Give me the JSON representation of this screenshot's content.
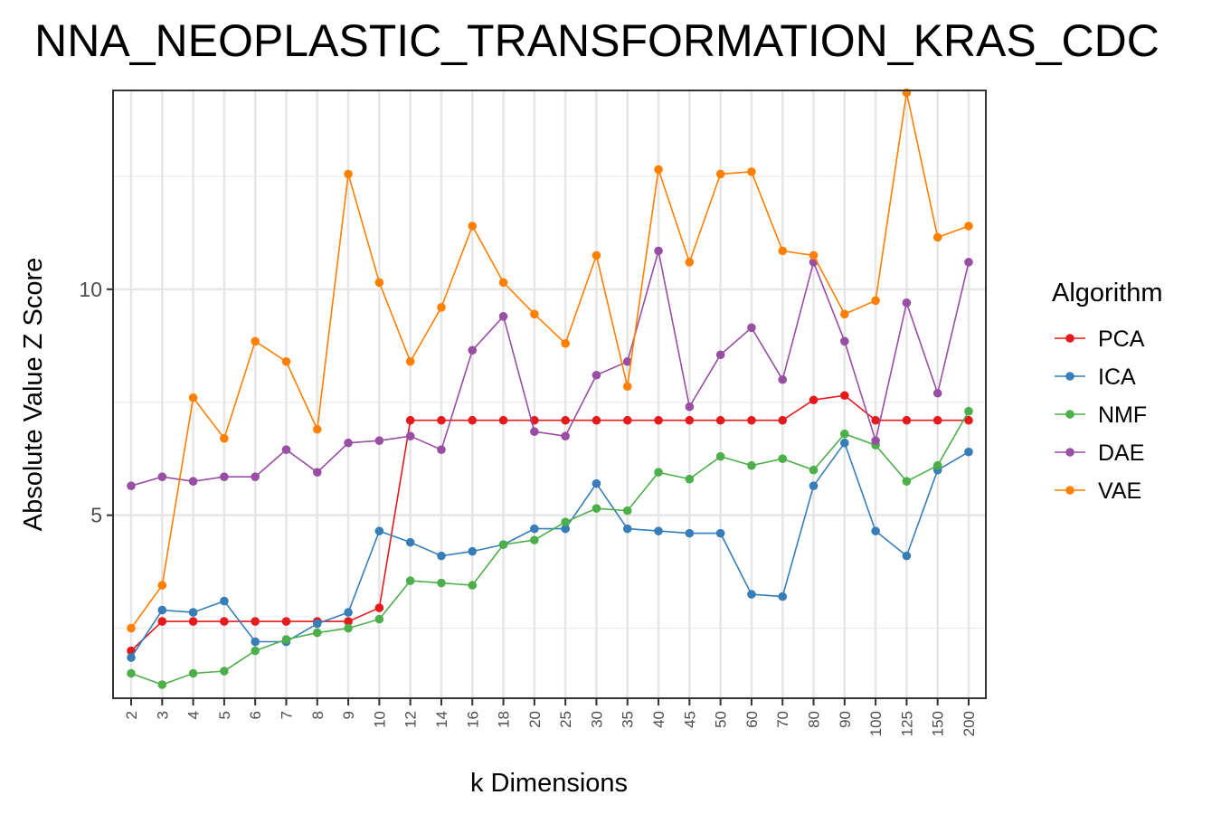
{
  "chart_data": {
    "type": "line",
    "title": "NNA_NEOPLASTIC_TRANSFORMATION_KRAS_CDC",
    "xlabel": "k Dimensions",
    "ylabel": "Absolute Value Z Score",
    "categories": [
      "2",
      "3",
      "4",
      "5",
      "6",
      "7",
      "8",
      "9",
      "10",
      "12",
      "14",
      "16",
      "18",
      "20",
      "25",
      "30",
      "35",
      "40",
      "45",
      "50",
      "60",
      "70",
      "80",
      "90",
      "100",
      "125",
      "150",
      "200"
    ],
    "ylim": [
      0.95,
      14.4
    ],
    "yticks": [
      5,
      10
    ],
    "grid": true,
    "legend": {
      "title": "Algorithm",
      "position": "right"
    },
    "series": [
      {
        "name": "PCA",
        "color": "#e41a1c",
        "values": [
          2.0,
          2.65,
          2.65,
          2.65,
          2.65,
          2.65,
          2.65,
          2.65,
          2.95,
          7.1,
          7.1,
          7.1,
          7.1,
          7.1,
          7.1,
          7.1,
          7.1,
          7.1,
          7.1,
          7.1,
          7.1,
          7.1,
          7.55,
          7.65,
          7.1,
          7.1,
          7.1,
          7.1
        ]
      },
      {
        "name": "ICA",
        "color": "#377eb8",
        "values": [
          1.85,
          2.9,
          2.85,
          3.1,
          2.2,
          2.2,
          2.6,
          2.85,
          4.65,
          4.4,
          4.1,
          4.2,
          4.35,
          4.7,
          4.7,
          5.7,
          4.7,
          4.65,
          4.6,
          4.6,
          3.25,
          3.2,
          5.65,
          6.6,
          4.65,
          4.1,
          6.0,
          6.4
        ]
      },
      {
        "name": "NMF",
        "color": "#4daf4a",
        "values": [
          1.5,
          1.25,
          1.5,
          1.55,
          2.0,
          2.25,
          2.4,
          2.5,
          2.7,
          3.55,
          3.5,
          3.45,
          4.35,
          4.45,
          4.85,
          5.15,
          5.1,
          5.95,
          5.8,
          6.3,
          6.1,
          6.25,
          6.0,
          6.8,
          6.55,
          5.75,
          6.1,
          7.3
        ]
      },
      {
        "name": "DAE",
        "color": "#984ea3",
        "values": [
          5.65,
          5.85,
          5.75,
          5.85,
          5.85,
          6.45,
          5.95,
          6.6,
          6.65,
          6.75,
          6.45,
          8.65,
          9.4,
          6.85,
          6.75,
          8.1,
          8.4,
          10.85,
          7.4,
          8.55,
          9.15,
          8.0,
          10.6,
          8.85,
          6.65,
          9.7,
          7.7,
          10.6
        ]
      },
      {
        "name": "VAE",
        "color": "#ff7f00",
        "values": [
          2.5,
          3.45,
          7.6,
          6.7,
          8.85,
          8.4,
          6.9,
          12.55,
          10.15,
          8.4,
          9.6,
          11.4,
          10.15,
          9.45,
          8.8,
          10.75,
          7.85,
          12.65,
          10.6,
          12.55,
          12.6,
          10.85,
          10.75,
          9.45,
          9.75,
          14.35,
          11.15,
          11.4
        ]
      }
    ]
  }
}
